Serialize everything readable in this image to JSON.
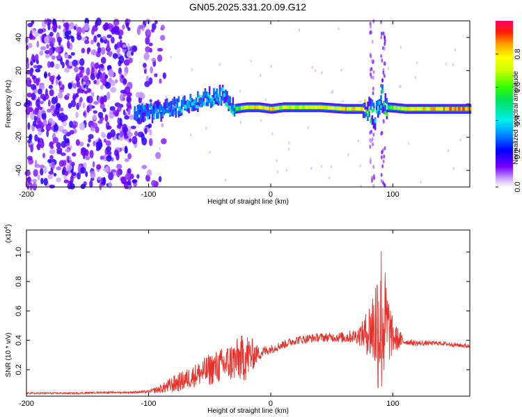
{
  "title": "GN05.2025.331.20.09.G12",
  "chart_data": [
    {
      "type": "heatmap",
      "name": "spectrogram",
      "xlabel": "Height of straight line (km)",
      "ylabel": "Frequency (Hz)",
      "xlim": [
        -200,
        163
      ],
      "ylim": [
        -50,
        50
      ],
      "xticks": [
        "-200",
        "-100",
        "0",
        "100"
      ],
      "xtick_values": [
        -200,
        -100,
        0,
        100
      ],
      "yticks": [
        "-40",
        "-20",
        "0",
        "20",
        "40"
      ],
      "ytick_values": [
        -40,
        -20,
        0,
        20,
        40
      ],
      "colorbar": {
        "label": "Normalized spectral amplitude",
        "ticks": [
          "0.0",
          "0.2",
          "0.4",
          "0.6",
          "0.8"
        ],
        "tick_values": [
          0.0,
          0.2,
          0.4,
          0.6,
          0.8
        ],
        "range": [
          0,
          1
        ]
      },
      "noise_region_x": [
        -200,
        -95
      ],
      "signal_track": {
        "x": [
          -110,
          -100,
          -90,
          -80,
          -70,
          -60,
          -50,
          -40,
          -30,
          -20,
          -10,
          0,
          10,
          20,
          40,
          60,
          75,
          80,
          85,
          90,
          95,
          110,
          130,
          150,
          163
        ],
        "freq": [
          -6,
          -5,
          -4,
          -2,
          0,
          2,
          4,
          5,
          -3,
          -2,
          -2,
          -3,
          -2,
          -2,
          -2,
          -3,
          -3,
          -4,
          -6,
          5,
          -2,
          -3,
          -3,
          -3,
          -3
        ],
        "amplitude": [
          0.3,
          0.35,
          0.3,
          0.35,
          0.4,
          0.4,
          0.4,
          0.4,
          0.55,
          0.75,
          0.8,
          0.8,
          0.7,
          0.7,
          0.75,
          0.8,
          0.8,
          0.6,
          0.5,
          0.5,
          0.6,
          0.75,
          0.8,
          0.85,
          0.85
        ]
      }
    },
    {
      "type": "line",
      "name": "snr",
      "xlabel": "Height of straight line (km)",
      "ylabel": "SNR (10 * v/v)",
      "y_multiplier_label": "(x10",
      "y_multiplier_exp": "4",
      "y_multiplier_close": ")",
      "xlim": [
        -200,
        163
      ],
      "ylim": [
        0.02,
        1.15
      ],
      "xticks": [
        "-200",
        "-100",
        "0",
        "100"
      ],
      "xtick_values": [
        -200,
        -100,
        0,
        100
      ],
      "yticks": [
        "0.2",
        "0.4",
        "0.6",
        "0.8",
        "1.0"
      ],
      "ytick_values": [
        0.2,
        0.4,
        0.6,
        0.8,
        1.0
      ],
      "color": "#e8302a",
      "series": [
        {
          "name": "SNR",
          "x": [
            -200,
            -180,
            -160,
            -140,
            -120,
            -100,
            -90,
            -80,
            -70,
            -60,
            -50,
            -40,
            -30,
            -20,
            -10,
            0,
            10,
            20,
            30,
            40,
            50,
            60,
            70,
            75,
            80,
            85,
            90,
            95,
            100,
            110,
            120,
            130,
            140,
            150,
            163
          ],
          "y": [
            0.04,
            0.04,
            0.04,
            0.045,
            0.045,
            0.05,
            0.07,
            0.1,
            0.13,
            0.17,
            0.2,
            0.23,
            0.26,
            0.29,
            0.31,
            0.34,
            0.37,
            0.4,
            0.41,
            0.42,
            0.42,
            0.42,
            0.43,
            0.44,
            0.46,
            0.5,
            0.55,
            0.5,
            0.42,
            0.39,
            0.38,
            0.38,
            0.38,
            0.37,
            0.36
          ],
          "envelope": [
            0.006,
            0.006,
            0.006,
            0.006,
            0.006,
            0.01,
            0.03,
            0.06,
            0.07,
            0.08,
            0.11,
            0.12,
            0.14,
            0.17,
            0.05,
            0.03,
            0.03,
            0.03,
            0.03,
            0.03,
            0.03,
            0.04,
            0.05,
            0.09,
            0.18,
            0.33,
            0.6,
            0.3,
            0.12,
            0.02,
            0.02,
            0.015,
            0.015,
            0.015,
            0.015
          ]
        }
      ]
    }
  ]
}
